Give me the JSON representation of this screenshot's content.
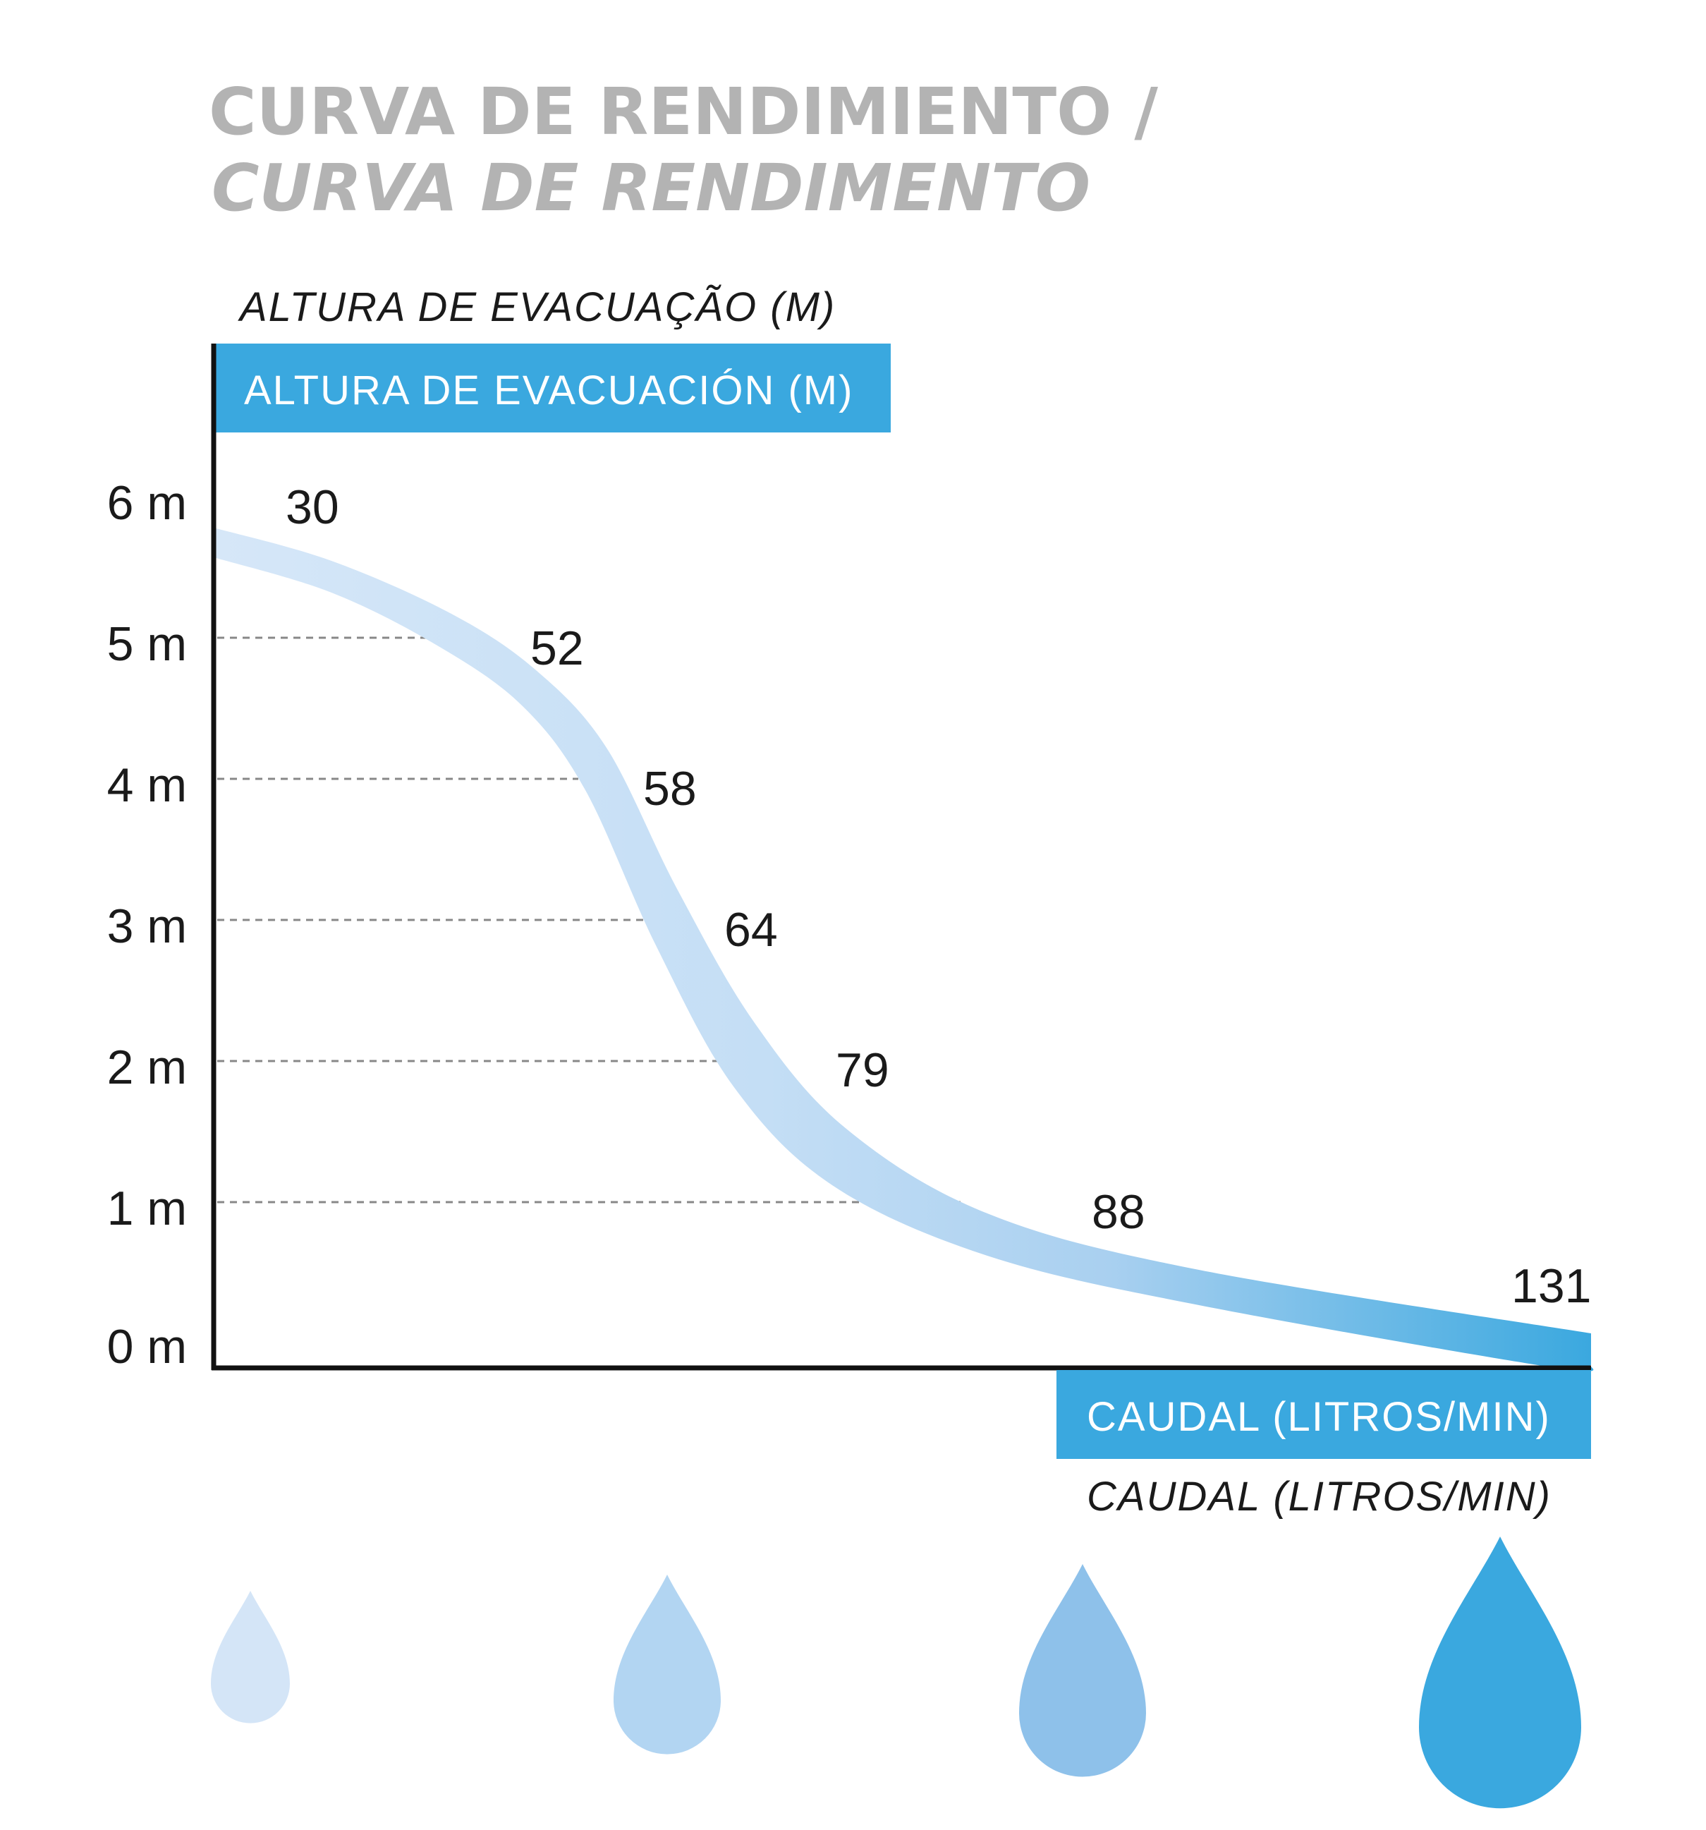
{
  "title": {
    "line1": "CURVA DE RENDIMIENTO /",
    "line2": "CURVA DE RENDIMENTO"
  },
  "colors": {
    "title": "#b3b3b3",
    "accent": "#3aa8df",
    "curve_light": "#d6e7f8",
    "curve_dark": "#3aa8df",
    "gridline": "#888888",
    "axis": "#111111",
    "drops": [
      "#d4e5f7",
      "#b2d5f2",
      "#8ec1ea",
      "#3aa8df"
    ]
  },
  "chart_data": {
    "type": "line",
    "ylabel_pt": "ALTURA DE EVACUAÇÃO (M)",
    "ylabel_es": "ALTURA DE EVACUACIÓN (M)",
    "xlabel_es": "CAUDAL (LITROS/MIN)",
    "xlabel_pt": "CAUDAL (LITROS/MIN)",
    "y_ticks": [
      "0 m",
      "1 m",
      "2 m",
      "3 m",
      "4 m",
      "5 m",
      "6 m"
    ],
    "ylim": [
      0,
      6
    ],
    "grid": "dashed horizontal at 1–5 m",
    "points": [
      {
        "height": 6,
        "flow": 30
      },
      {
        "height": 5,
        "flow": 52
      },
      {
        "height": 4,
        "flow": 58
      },
      {
        "height": 3,
        "flow": 64
      },
      {
        "height": 2,
        "flow": 79
      },
      {
        "height": 1,
        "flow": 88
      },
      {
        "height": 0,
        "flow": 131
      }
    ],
    "data_labels": [
      "30",
      "52",
      "58",
      "64",
      "79",
      "88",
      "131"
    ]
  },
  "drops": [
    "drop-small",
    "drop-medium",
    "drop-large",
    "drop-xlarge"
  ]
}
